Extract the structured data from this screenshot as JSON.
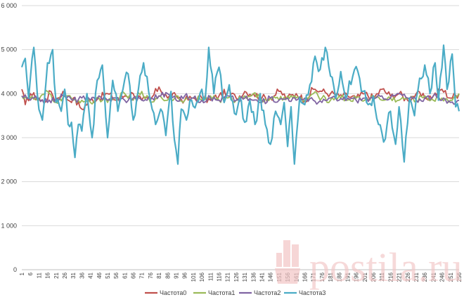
{
  "chart_data": {
    "type": "line",
    "y_ticks": [
      "0",
      "1 000",
      "2 000",
      "3 000",
      "4 000",
      "5 000",
      "6 000"
    ],
    "ylim": [
      0,
      6000
    ],
    "x_range": [
      1,
      256
    ],
    "x_tick_step": 5,
    "grid": true,
    "legend_position": "bottom",
    "series": [
      {
        "name": "Частота0",
        "color": "#c0504d",
        "anchors": [
          [
            1,
            4100
          ],
          [
            3,
            3750
          ],
          [
            6,
            4000
          ],
          [
            10,
            3900
          ],
          [
            14,
            3800
          ],
          [
            18,
            4050
          ],
          [
            21,
            3850
          ],
          [
            25,
            4050
          ],
          [
            28,
            3850
          ],
          [
            31,
            3900
          ],
          [
            36,
            3650
          ],
          [
            41,
            3850
          ],
          [
            46,
            3900
          ],
          [
            51,
            4000
          ],
          [
            56,
            3850
          ],
          [
            61,
            3950
          ],
          [
            66,
            4000
          ],
          [
            71,
            3850
          ],
          [
            76,
            3850
          ],
          [
            81,
            4150
          ],
          [
            86,
            3900
          ],
          [
            91,
            3950
          ],
          [
            96,
            3850
          ],
          [
            101,
            3900
          ],
          [
            106,
            3900
          ],
          [
            111,
            3850
          ],
          [
            116,
            3950
          ],
          [
            121,
            4050
          ],
          [
            126,
            3900
          ],
          [
            131,
            4050
          ],
          [
            136,
            4000
          ],
          [
            141,
            3900
          ],
          [
            146,
            3900
          ],
          [
            151,
            4050
          ],
          [
            156,
            3900
          ],
          [
            161,
            4000
          ],
          [
            166,
            3850
          ],
          [
            171,
            4100
          ],
          [
            176,
            4050
          ],
          [
            181,
            4000
          ],
          [
            186,
            3950
          ],
          [
            191,
            3950
          ],
          [
            196,
            3900
          ],
          [
            201,
            4000
          ],
          [
            206,
            3900
          ],
          [
            211,
            4100
          ],
          [
            216,
            3950
          ],
          [
            221,
            4000
          ],
          [
            226,
            3850
          ],
          [
            231,
            4000
          ],
          [
            236,
            3900
          ],
          [
            241,
            3950
          ],
          [
            246,
            4100
          ],
          [
            251,
            3900
          ],
          [
            256,
            4000
          ]
        ]
      },
      {
        "name": "Частота1",
        "color": "#9bbb59",
        "anchors": [
          [
            1,
            3950
          ],
          [
            6,
            3900
          ],
          [
            11,
            3850
          ],
          [
            16,
            4050
          ],
          [
            21,
            3800
          ],
          [
            26,
            3950
          ],
          [
            31,
            3850
          ],
          [
            36,
            3850
          ],
          [
            41,
            3800
          ],
          [
            46,
            3900
          ],
          [
            51,
            3800
          ],
          [
            56,
            3900
          ],
          [
            61,
            4000
          ],
          [
            66,
            3850
          ],
          [
            71,
            4050
          ],
          [
            76,
            3800
          ],
          [
            81,
            3950
          ],
          [
            86,
            3850
          ],
          [
            91,
            3950
          ],
          [
            96,
            3850
          ],
          [
            101,
            3900
          ],
          [
            106,
            3850
          ],
          [
            111,
            3950
          ],
          [
            116,
            3850
          ],
          [
            121,
            3900
          ],
          [
            126,
            3850
          ],
          [
            131,
            3950
          ],
          [
            136,
            4000
          ],
          [
            141,
            3850
          ],
          [
            146,
            3900
          ],
          [
            151,
            3850
          ],
          [
            156,
            3950
          ],
          [
            161,
            3900
          ],
          [
            166,
            3850
          ],
          [
            171,
            4000
          ],
          [
            176,
            3900
          ],
          [
            181,
            3850
          ],
          [
            186,
            3950
          ],
          [
            191,
            3850
          ],
          [
            196,
            3900
          ],
          [
            201,
            3850
          ],
          [
            206,
            3950
          ],
          [
            211,
            3850
          ],
          [
            216,
            3900
          ],
          [
            221,
            3850
          ],
          [
            226,
            3900
          ],
          [
            231,
            3850
          ],
          [
            236,
            3950
          ],
          [
            241,
            3850
          ],
          [
            246,
            3900
          ],
          [
            251,
            3850
          ],
          [
            256,
            4000
          ]
        ]
      },
      {
        "name": "Частота2",
        "color": "#8064a2",
        "anchors": [
          [
            1,
            3950
          ],
          [
            6,
            3850
          ],
          [
            11,
            3900
          ],
          [
            16,
            3800
          ],
          [
            21,
            3900
          ],
          [
            26,
            3950
          ],
          [
            31,
            3850
          ],
          [
            36,
            3900
          ],
          [
            41,
            3850
          ],
          [
            46,
            3950
          ],
          [
            51,
            3850
          ],
          [
            56,
            3900
          ],
          [
            61,
            3850
          ],
          [
            66,
            3900
          ],
          [
            71,
            3850
          ],
          [
            76,
            3900
          ],
          [
            81,
            3950
          ],
          [
            86,
            4000
          ],
          [
            91,
            3850
          ],
          [
            96,
            3950
          ],
          [
            101,
            3900
          ],
          [
            106,
            3850
          ],
          [
            111,
            3900
          ],
          [
            116,
            3850
          ],
          [
            121,
            3950
          ],
          [
            126,
            3850
          ],
          [
            131,
            3900
          ],
          [
            136,
            3850
          ],
          [
            141,
            3800
          ],
          [
            146,
            3900
          ],
          [
            151,
            3850
          ],
          [
            156,
            3900
          ],
          [
            161,
            3850
          ],
          [
            166,
            3900
          ],
          [
            171,
            3850
          ],
          [
            176,
            3800
          ],
          [
            181,
            3900
          ],
          [
            186,
            3850
          ],
          [
            191,
            3900
          ],
          [
            196,
            3850
          ],
          [
            201,
            3900
          ],
          [
            206,
            3850
          ],
          [
            211,
            3950
          ],
          [
            216,
            3900
          ],
          [
            221,
            4000
          ],
          [
            226,
            3900
          ],
          [
            231,
            3850
          ],
          [
            236,
            3900
          ],
          [
            241,
            3950
          ],
          [
            246,
            3850
          ],
          [
            251,
            3800
          ],
          [
            256,
            3850
          ]
        ]
      },
      {
        "name": "Частота3",
        "color": "#4bacc6",
        "anchors": [
          [
            1,
            4600
          ],
          [
            3,
            4800
          ],
          [
            5,
            3900
          ],
          [
            8,
            5050
          ],
          [
            10,
            4000
          ],
          [
            13,
            3400
          ],
          [
            16,
            4700
          ],
          [
            19,
            5000
          ],
          [
            21,
            3800
          ],
          [
            24,
            3600
          ],
          [
            26,
            4100
          ],
          [
            28,
            3300
          ],
          [
            30,
            3350
          ],
          [
            32,
            2550
          ],
          [
            34,
            3300
          ],
          [
            36,
            3150
          ],
          [
            39,
            4000
          ],
          [
            42,
            3000
          ],
          [
            45,
            4300
          ],
          [
            48,
            4650
          ],
          [
            51,
            3000
          ],
          [
            54,
            4300
          ],
          [
            57,
            3600
          ],
          [
            60,
            4100
          ],
          [
            63,
            4450
          ],
          [
            66,
            3400
          ],
          [
            69,
            4100
          ],
          [
            72,
            4700
          ],
          [
            76,
            3850
          ],
          [
            79,
            3300
          ],
          [
            82,
            3650
          ],
          [
            85,
            3050
          ],
          [
            88,
            4050
          ],
          [
            90,
            2950
          ],
          [
            92,
            2400
          ],
          [
            94,
            3650
          ],
          [
            97,
            3400
          ],
          [
            100,
            3850
          ],
          [
            103,
            3800
          ],
          [
            106,
            4100
          ],
          [
            108,
            3900
          ],
          [
            110,
            5050
          ],
          [
            113,
            4000
          ],
          [
            116,
            4600
          ],
          [
            119,
            3800
          ],
          [
            122,
            4200
          ],
          [
            125,
            3550
          ],
          [
            128,
            3900
          ],
          [
            131,
            3350
          ],
          [
            134,
            3850
          ],
          [
            137,
            3300
          ],
          [
            140,
            4000
          ],
          [
            143,
            3300
          ],
          [
            146,
            2850
          ],
          [
            149,
            3600
          ],
          [
            152,
            3300
          ],
          [
            154,
            3800
          ],
          [
            156,
            2800
          ],
          [
            158,
            3700
          ],
          [
            160,
            2400
          ],
          [
            163,
            3900
          ],
          [
            166,
            3750
          ],
          [
            169,
            4200
          ],
          [
            172,
            4850
          ],
          [
            175,
            4550
          ],
          [
            178,
            5050
          ],
          [
            181,
            4400
          ],
          [
            184,
            3900
          ],
          [
            187,
            4500
          ],
          [
            190,
            3900
          ],
          [
            194,
            4400
          ],
          [
            197,
            4500
          ],
          [
            200,
            4050
          ],
          [
            203,
            3750
          ],
          [
            206,
            3950
          ],
          [
            209,
            3300
          ],
          [
            212,
            2900
          ],
          [
            214,
            3300
          ],
          [
            216,
            3600
          ],
          [
            219,
            2850
          ],
          [
            221,
            3700
          ],
          [
            224,
            2450
          ],
          [
            227,
            3900
          ],
          [
            230,
            3500
          ],
          [
            233,
            4350
          ],
          [
            236,
            4650
          ],
          [
            239,
            4000
          ],
          [
            242,
            4700
          ],
          [
            244,
            3850
          ],
          [
            247,
            5100
          ],
          [
            249,
            4100
          ],
          [
            252,
            4900
          ],
          [
            254,
            3700
          ],
          [
            256,
            3600
          ]
        ]
      }
    ],
    "x_tick_labels": [
      "1",
      "6",
      "11",
      "16",
      "21",
      "26",
      "31",
      "36",
      "41",
      "46",
      "51",
      "56",
      "61",
      "66",
      "71",
      "76",
      "81",
      "86",
      "91",
      "96",
      "101",
      "106",
      "111",
      "116",
      "121",
      "126",
      "131",
      "136",
      "141",
      "146",
      "151",
      "156",
      "161",
      "166",
      "171",
      "176",
      "181",
      "186",
      "191",
      "196",
      "201",
      "206",
      "211",
      "216",
      "221",
      "226",
      "231",
      "236",
      "241",
      "246",
      "251",
      "256"
    ]
  },
  "watermark": {
    "text": "postila.ru",
    "icon": "hand-icon",
    "color": "#f2c5c5"
  }
}
